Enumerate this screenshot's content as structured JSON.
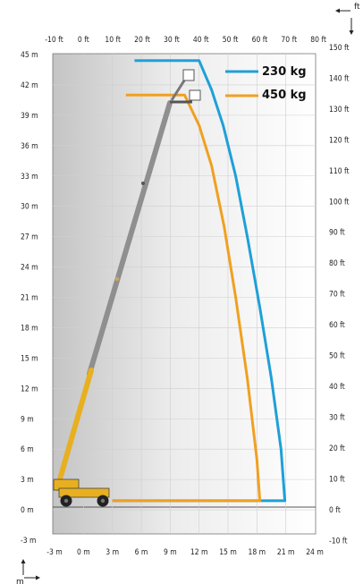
{
  "units": {
    "top_right": "ft",
    "bottom_left": "m"
  },
  "x_ticks_m": [
    "-3 m",
    "0 m",
    "3 m",
    "6 m",
    "9 m",
    "12 m",
    "15 m",
    "18 m",
    "21 m",
    "24 m"
  ],
  "x_ticks_ft": [
    "-10 ft",
    "0 ft",
    "10 ft",
    "20 ft",
    "30 ft",
    "40 ft",
    "50 ft",
    "60 ft",
    "70 ft",
    "80 ft"
  ],
  "y_ticks_m": [
    "45 m",
    "42 m",
    "39 m",
    "36 m",
    "33 m",
    "30 m",
    "27 m",
    "24 m",
    "21 m",
    "18 m",
    "15 m",
    "12 m",
    "9 m",
    "6 m",
    "3 m",
    "0 m",
    "-3 m"
  ],
  "y_ticks_ft": [
    "150 ft",
    "140 ft",
    "130 ft",
    "120 ft",
    "110 ft",
    "100 ft",
    "90 ft",
    "80 ft",
    "70 ft",
    "60 ft",
    "50 ft",
    "40 ft",
    "30 ft",
    "20 ft",
    "10 ft",
    "0 ft",
    "-10 ft"
  ],
  "chart_data": {
    "type": "line",
    "xlim": [
      -3,
      24
    ],
    "ylim": [
      -3,
      45
    ],
    "series": [
      {
        "name": "230 kg",
        "color": "#1ea0d8",
        "points": [
          [
            5.3,
            44.4
          ],
          [
            12.0,
            44.4
          ],
          [
            13.3,
            41.5
          ],
          [
            14.5,
            38.0
          ],
          [
            15.8,
            33.0
          ],
          [
            17.0,
            27.0
          ],
          [
            18.3,
            20.0
          ],
          [
            19.5,
            13.0
          ],
          [
            20.5,
            6.0
          ],
          [
            20.9,
            0.9
          ],
          [
            3.0,
            0.9
          ]
        ]
      },
      {
        "name": "450 kg",
        "color": "#f0a020",
        "points": [
          [
            4.4,
            41.0
          ],
          [
            10.5,
            41.0
          ],
          [
            12.0,
            38.0
          ],
          [
            13.3,
            34.0
          ],
          [
            14.6,
            28.0
          ],
          [
            15.8,
            21.0
          ],
          [
            17.0,
            13.0
          ],
          [
            18.0,
            5.0
          ],
          [
            18.3,
            0.9
          ],
          [
            3.0,
            0.9
          ]
        ]
      }
    ],
    "grid": true,
    "legend": "top-right"
  }
}
